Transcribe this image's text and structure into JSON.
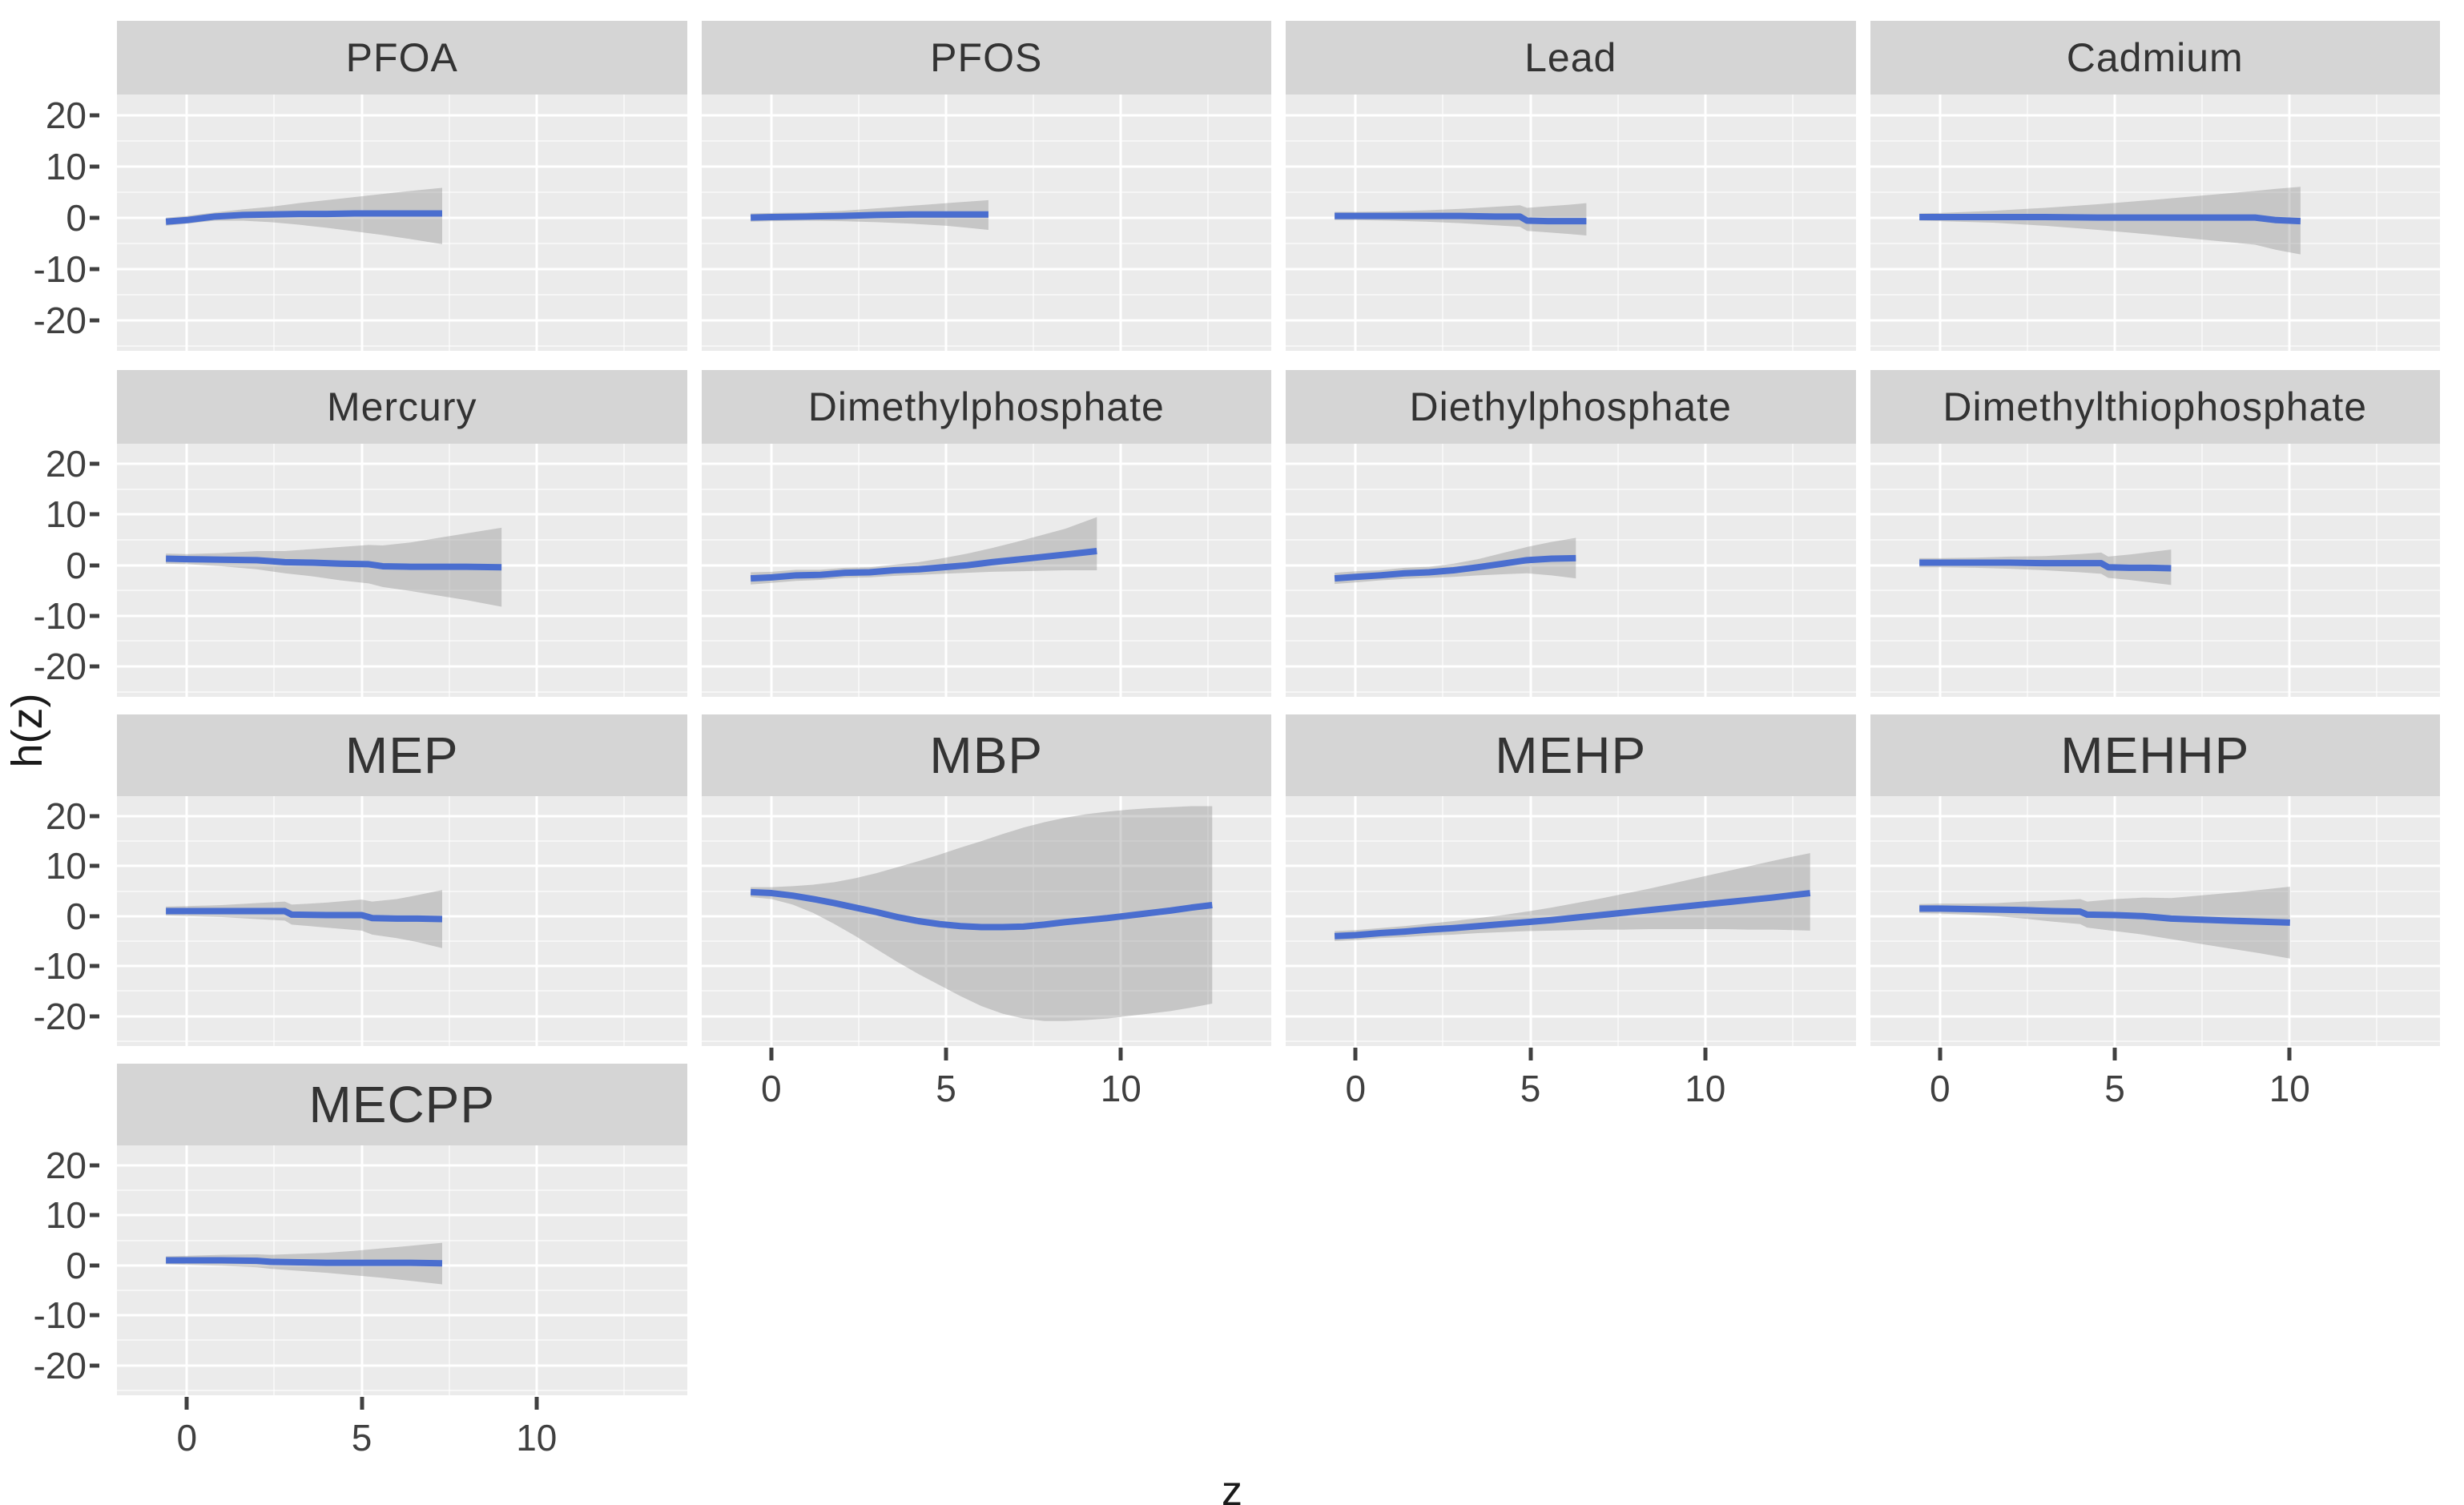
{
  "figure": {
    "y_axis_label": "h(z)",
    "x_axis_label": "z"
  },
  "colors": {
    "line": "#4a6ecf",
    "band": "rgba(127,127,127,0.34)",
    "panel_bg": "#ebebeb",
    "strip_bg": "#d5d5d5",
    "grid_major": "#ffffff",
    "grid_minor": "rgba(255,255,255,0.55)",
    "axis_text": "#404040"
  },
  "chart_data": {
    "type": "line",
    "title": "",
    "xlabel": "z",
    "ylabel": "h(z)",
    "x_domain": [
      -2,
      14.3
    ],
    "y_domain": [
      24,
      -26
    ],
    "x_ticks": [
      0,
      5,
      10
    ],
    "y_ticks": [
      20,
      10,
      0,
      -10,
      -20
    ],
    "x_minor": [
      2.5,
      7.5,
      12.5
    ],
    "y_minor": [
      15,
      5,
      -5,
      -15,
      -25
    ],
    "grid": true,
    "legend": false,
    "facet_rows": [
      [
        0,
        1,
        2,
        3
      ],
      [
        4,
        5,
        6,
        7
      ],
      [
        8,
        9,
        10,
        11
      ],
      [
        12,
        -1,
        -1,
        -1
      ]
    ],
    "panels": [
      {
        "name": "PFOA",
        "x": [
          -0.6,
          0,
          0.8,
          1.6,
          2.4,
          3.2,
          4,
          4.8,
          5.6,
          6.4,
          7.3
        ],
        "y": [
          -0.8,
          -0.5,
          0.2,
          0.5,
          0.6,
          0.7,
          0.7,
          0.8,
          0.8,
          0.8,
          0.8
        ],
        "lo": [
          -1.6,
          -1.2,
          -0.6,
          -0.6,
          -0.9,
          -1.4,
          -2.0,
          -2.7,
          -3.4,
          -4.2,
          -5.2
        ],
        "hi": [
          0.0,
          0.3,
          1.0,
          1.6,
          2.1,
          2.8,
          3.4,
          4.0,
          4.6,
          5.2,
          5.8
        ]
      },
      {
        "name": "PFOS",
        "x": [
          -0.6,
          0,
          1,
          2,
          3,
          4,
          5,
          5.6,
          6.2
        ],
        "y": [
          0.0,
          0.1,
          0.2,
          0.3,
          0.5,
          0.6,
          0.6,
          0.6,
          0.6
        ],
        "lo": [
          -0.8,
          -0.7,
          -0.6,
          -0.7,
          -0.9,
          -1.2,
          -1.6,
          -2.0,
          -2.4
        ],
        "hi": [
          0.8,
          0.9,
          1.0,
          1.3,
          1.8,
          2.3,
          2.8,
          3.1,
          3.4
        ]
      },
      {
        "name": "Lead",
        "x": [
          -0.6,
          0,
          1,
          2,
          3,
          4,
          4.7,
          4.9,
          5.5,
          6.1,
          6.6
        ],
        "y": [
          0.3,
          0.3,
          0.3,
          0.3,
          0.3,
          0.2,
          0.2,
          -0.6,
          -0.7,
          -0.7,
          -0.7
        ],
        "lo": [
          -0.5,
          -0.5,
          -0.6,
          -0.8,
          -1.1,
          -1.5,
          -1.8,
          -2.6,
          -2.9,
          -3.2,
          -3.5
        ],
        "hi": [
          1.1,
          1.1,
          1.2,
          1.4,
          1.7,
          2.1,
          2.4,
          1.9,
          2.2,
          2.5,
          2.8
        ]
      },
      {
        "name": "Cadmium",
        "x": [
          -0.6,
          0,
          1.5,
          3,
          4.5,
          6,
          7.5,
          9,
          9.6,
          10.3
        ],
        "y": [
          0.1,
          0.1,
          0.1,
          0.1,
          0.0,
          0.0,
          0.0,
          0.0,
          -0.5,
          -0.7
        ],
        "lo": [
          -0.6,
          -0.7,
          -1.0,
          -1.6,
          -2.4,
          -3.3,
          -4.3,
          -5.3,
          -6.3,
          -7.2
        ],
        "hi": [
          0.8,
          0.9,
          1.3,
          1.9,
          2.6,
          3.4,
          4.3,
          5.2,
          5.6,
          6.0
        ]
      },
      {
        "name": "Mercury",
        "x": [
          -0.6,
          0,
          1,
          2,
          2.8,
          3.6,
          4.4,
          5.2,
          5.6,
          6.4,
          7.2,
          8,
          9
        ],
        "y": [
          1.3,
          1.2,
          1.1,
          1.0,
          0.6,
          0.5,
          0.3,
          0.2,
          -0.2,
          -0.3,
          -0.3,
          -0.3,
          -0.4
        ],
        "lo": [
          0.3,
          0.2,
          -0.2,
          -0.8,
          -1.6,
          -2.2,
          -3.0,
          -3.6,
          -4.3,
          -5.1,
          -6.0,
          -6.9,
          -8.2
        ],
        "hi": [
          2.3,
          2.2,
          2.4,
          2.8,
          2.8,
          3.2,
          3.6,
          4.0,
          3.9,
          4.5,
          5.4,
          6.3,
          7.4
        ]
      },
      {
        "name": "Dimethylphosphate",
        "x": [
          -0.6,
          0,
          0.7,
          1.4,
          2.1,
          2.8,
          3.5,
          4.2,
          4.9,
          5.6,
          6.3,
          7.0,
          7.7,
          8.4,
          9.3
        ],
        "y": [
          -2.6,
          -2.4,
          -2.0,
          -1.9,
          -1.5,
          -1.4,
          -1.0,
          -0.8,
          -0.4,
          0.0,
          0.6,
          1.1,
          1.6,
          2.1,
          2.8
        ],
        "lo": [
          -3.8,
          -3.5,
          -3.1,
          -2.9,
          -2.5,
          -2.4,
          -2.1,
          -1.9,
          -1.7,
          -1.5,
          -1.3,
          -1.2,
          -1.1,
          -1.0,
          -1.0
        ],
        "hi": [
          -1.4,
          -1.3,
          -0.9,
          -0.9,
          -0.5,
          -0.4,
          0.1,
          0.6,
          1.4,
          2.3,
          3.4,
          4.6,
          5.9,
          7.2,
          9.5
        ]
      },
      {
        "name": "Diethylphosphate",
        "x": [
          -0.6,
          0,
          0.7,
          1.4,
          2.1,
          2.8,
          3.5,
          4.2,
          4.9,
          5.6,
          6.3
        ],
        "y": [
          -2.6,
          -2.3,
          -2.0,
          -1.6,
          -1.4,
          -1.0,
          -0.4,
          0.3,
          1.0,
          1.3,
          1.4
        ],
        "lo": [
          -3.7,
          -3.4,
          -3.0,
          -2.7,
          -2.5,
          -2.3,
          -2.0,
          -1.8,
          -1.6,
          -2.0,
          -2.6
        ],
        "hi": [
          -1.5,
          -1.2,
          -1.0,
          -0.5,
          -0.3,
          0.3,
          1.2,
          2.4,
          3.6,
          4.6,
          5.4
        ]
      },
      {
        "name": "Dimethylthiophosphate",
        "x": [
          -0.6,
          0,
          1,
          2,
          3,
          4,
          4.6,
          4.8,
          5.4,
          6,
          6.6
        ],
        "y": [
          0.5,
          0.5,
          0.5,
          0.5,
          0.4,
          0.4,
          0.4,
          -0.4,
          -0.5,
          -0.5,
          -0.6
        ],
        "lo": [
          -0.4,
          -0.4,
          -0.5,
          -0.7,
          -1.0,
          -1.4,
          -1.7,
          -2.5,
          -2.9,
          -3.4,
          -3.9
        ],
        "hi": [
          1.4,
          1.4,
          1.5,
          1.7,
          1.8,
          2.2,
          2.5,
          1.7,
          2.1,
          2.6,
          3.1
        ]
      },
      {
        "name": "MEP",
        "x": [
          -0.6,
          0,
          1,
          2,
          2.8,
          3.0,
          4,
          5,
          5.3,
          6,
          6.6,
          7.3
        ],
        "y": [
          1.0,
          1.0,
          1.0,
          1.0,
          1.0,
          0.3,
          0.2,
          0.2,
          -0.4,
          -0.5,
          -0.5,
          -0.6
        ],
        "lo": [
          0.1,
          0.0,
          -0.2,
          -0.6,
          -0.9,
          -1.7,
          -2.3,
          -2.9,
          -3.7,
          -4.4,
          -5.2,
          -6.4
        ],
        "hi": [
          1.9,
          2.0,
          2.2,
          2.6,
          2.9,
          2.3,
          2.7,
          3.3,
          2.9,
          3.4,
          4.2,
          5.2
        ]
      },
      {
        "name": "MBP",
        "x": [
          -0.6,
          0,
          0.6,
          1.2,
          1.8,
          2.4,
          3.0,
          3.6,
          4.2,
          4.8,
          5.4,
          6.0,
          6.6,
          7.2,
          7.8,
          8.4,
          9.0,
          9.6,
          10.2,
          10.8,
          11.4,
          12.0,
          12.6
        ],
        "y": [
          4.8,
          4.6,
          4.1,
          3.4,
          2.6,
          1.7,
          0.8,
          -0.2,
          -1.0,
          -1.6,
          -2.0,
          -2.2,
          -2.2,
          -2.1,
          -1.7,
          -1.2,
          -0.8,
          -0.4,
          0.1,
          0.6,
          1.1,
          1.7,
          2.2
        ],
        "lo": [
          3.8,
          3.4,
          2.3,
          0.6,
          -1.6,
          -4.0,
          -6.6,
          -9.2,
          -11.6,
          -13.8,
          -16.0,
          -18.0,
          -19.5,
          -20.5,
          -21.0,
          -21.0,
          -20.8,
          -20.5,
          -20.0,
          -19.5,
          -19.0,
          -18.3,
          -17.5
        ],
        "hi": [
          5.8,
          5.8,
          6.0,
          6.3,
          6.8,
          7.6,
          8.6,
          9.8,
          11.0,
          12.3,
          13.7,
          15.0,
          16.4,
          17.7,
          18.8,
          19.7,
          20.4,
          20.9,
          21.3,
          21.6,
          21.8,
          22.0,
          22.0
        ]
      },
      {
        "name": "MEHP",
        "x": [
          -0.6,
          0,
          0.7,
          1.4,
          2.1,
          2.8,
          3.5,
          4.2,
          4.9,
          5.6,
          6.3,
          7.0,
          7.7,
          8.4,
          9.1,
          9.8,
          10.5,
          11.2,
          11.9,
          12.5,
          13.0
        ],
        "y": [
          -4.0,
          -3.8,
          -3.4,
          -3.1,
          -2.7,
          -2.4,
          -2.0,
          -1.6,
          -1.2,
          -0.8,
          -0.3,
          0.2,
          0.7,
          1.2,
          1.7,
          2.2,
          2.7,
          3.2,
          3.7,
          4.2,
          4.6
        ],
        "lo": [
          -5.0,
          -4.8,
          -4.4,
          -4.2,
          -3.9,
          -3.7,
          -3.4,
          -3.2,
          -3.0,
          -2.9,
          -2.8,
          -2.7,
          -2.7,
          -2.6,
          -2.6,
          -2.6,
          -2.6,
          -2.7,
          -2.7,
          -2.8,
          -2.9
        ],
        "hi": [
          -3.0,
          -2.8,
          -2.4,
          -2.0,
          -1.5,
          -1.0,
          -0.4,
          0.2,
          0.9,
          1.7,
          2.6,
          3.5,
          4.5,
          5.5,
          6.6,
          7.7,
          8.8,
          9.9,
          11.0,
          11.9,
          12.6
        ]
      },
      {
        "name": "MEHHP",
        "x": [
          -0.6,
          0,
          0.8,
          1.6,
          2.4,
          3.2,
          4.0,
          4.2,
          5.0,
          5.8,
          6.6,
          7.4,
          8.2,
          9.1,
          10.0
        ],
        "y": [
          1.5,
          1.5,
          1.4,
          1.3,
          1.2,
          1.0,
          0.9,
          0.3,
          0.2,
          0.0,
          -0.5,
          -0.7,
          -0.9,
          -1.1,
          -1.3
        ],
        "lo": [
          0.6,
          0.5,
          0.3,
          0.0,
          -0.5,
          -1.1,
          -1.6,
          -2.3,
          -3.0,
          -3.7,
          -4.6,
          -5.5,
          -6.4,
          -7.4,
          -8.5
        ],
        "hi": [
          2.4,
          2.5,
          2.5,
          2.6,
          2.9,
          3.1,
          3.4,
          2.9,
          3.4,
          3.7,
          3.6,
          4.1,
          4.6,
          5.2,
          5.9
        ]
      },
      {
        "name": "MECPP",
        "x": [
          -0.6,
          0,
          1,
          2,
          2.4,
          3.2,
          4,
          4.8,
          5.6,
          6.4,
          7.3
        ],
        "y": [
          1.0,
          1.0,
          1.0,
          0.9,
          0.7,
          0.6,
          0.5,
          0.5,
          0.5,
          0.5,
          0.4
        ],
        "lo": [
          0.2,
          0.1,
          -0.1,
          -0.4,
          -0.7,
          -1.1,
          -1.5,
          -2.0,
          -2.5,
          -3.1,
          -3.8
        ],
        "hi": [
          1.8,
          1.9,
          2.1,
          2.2,
          2.1,
          2.3,
          2.5,
          2.9,
          3.4,
          3.9,
          4.5
        ]
      }
    ]
  }
}
